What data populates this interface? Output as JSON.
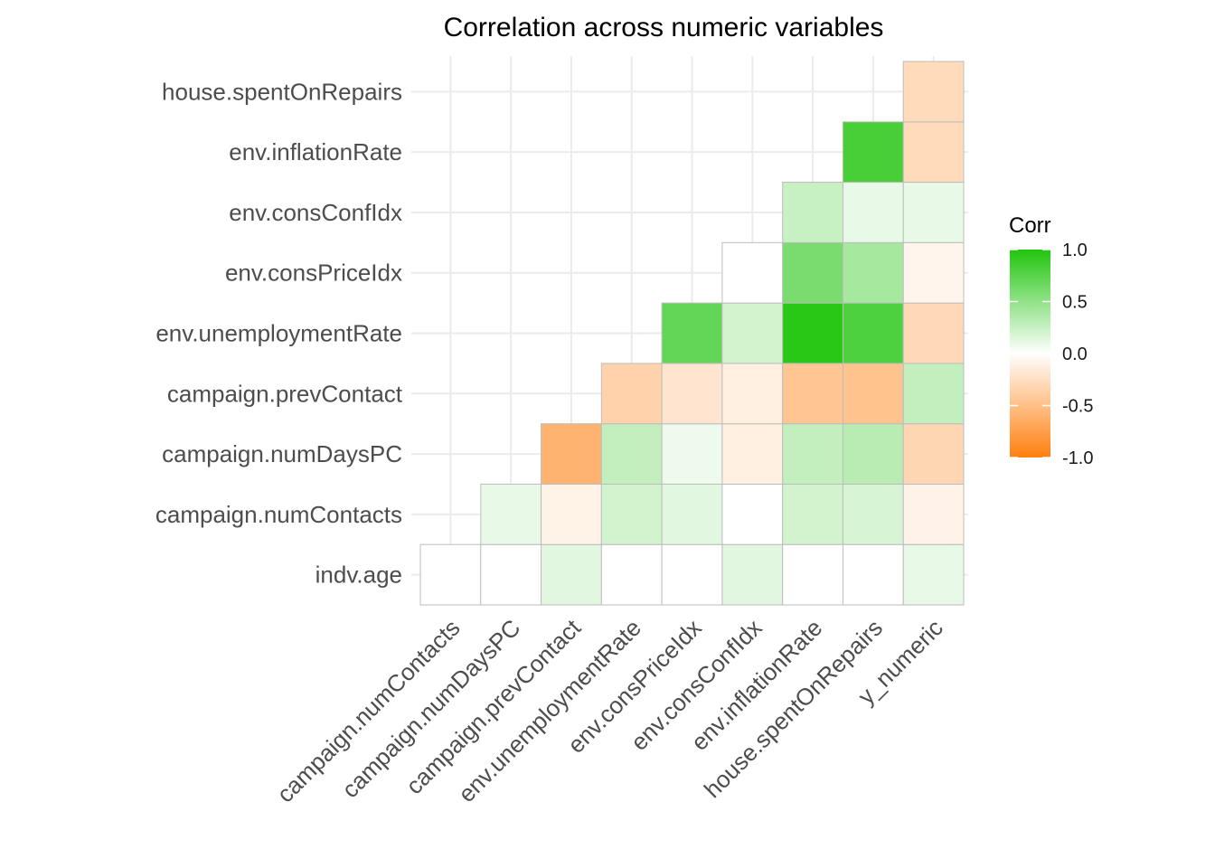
{
  "chart_data": {
    "type": "heatmap",
    "title": "Correlation across numeric variables",
    "x_categories": [
      "campaign.numContacts",
      "campaign.numDaysPC",
      "campaign.prevContact",
      "env.unemploymentRate",
      "env.consPriceIdx",
      "env.consConfIdx",
      "env.inflationRate",
      "house.spentOnRepairs",
      "y_numeric"
    ],
    "y_categories": [
      "indv.age",
      "campaign.numContacts",
      "campaign.numDaysPC",
      "campaign.prevContact",
      "env.unemploymentRate",
      "env.consPriceIdx",
      "env.consConfIdx",
      "env.inflationRate",
      "house.spentOnRepairs"
    ],
    "values": [
      [
        0.0,
        0.0,
        0.13,
        0.0,
        0.0,
        0.13,
        0.0,
        0.0,
        0.1
      ],
      [
        null,
        0.1,
        -0.1,
        0.2,
        0.13,
        0.0,
        0.2,
        0.18,
        -0.09
      ],
      [
        null,
        null,
        -0.59,
        0.27,
        0.08,
        -0.12,
        0.27,
        0.32,
        -0.32
      ],
      [
        null,
        null,
        null,
        -0.35,
        -0.2,
        -0.12,
        -0.45,
        -0.47,
        0.27
      ],
      [
        null,
        null,
        null,
        null,
        0.7,
        0.2,
        0.97,
        0.8,
        -0.3
      ],
      [
        null,
        null,
        null,
        null,
        null,
        0.0,
        0.6,
        0.4,
        -0.08
      ],
      [
        null,
        null,
        null,
        null,
        null,
        null,
        0.25,
        0.1,
        0.1
      ],
      [
        null,
        null,
        null,
        null,
        null,
        null,
        null,
        0.83,
        -0.28
      ],
      [
        null,
        null,
        null,
        null,
        null,
        null,
        null,
        null,
        -0.28
      ]
    ],
    "legend": {
      "title": "Corr",
      "ticks": [
        "1.0",
        "0.5",
        "0.0",
        "-0.5",
        "-1.0"
      ],
      "range": [
        -1,
        1
      ],
      "low_color": "#ff7f0e",
      "mid_color": "#ffffff",
      "high_color": "#22c50f"
    },
    "grid": true,
    "legend_position": "right"
  }
}
